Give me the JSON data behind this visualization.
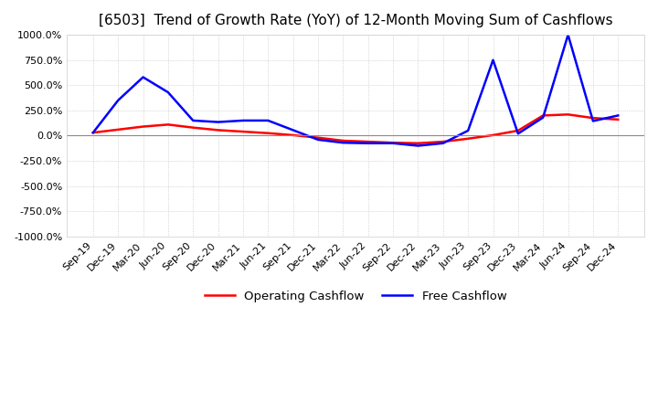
{
  "title": "[6503]  Trend of Growth Rate (YoY) of 12-Month Moving Sum of Cashflows",
  "title_fontsize": 11,
  "background_color": "#ffffff",
  "grid_color": "#bbbbbb",
  "ylim": [
    -1000,
    1000
  ],
  "yticks": [
    -1000,
    -750,
    -500,
    -250,
    0,
    250,
    500,
    750,
    1000
  ],
  "legend_labels": [
    "Operating Cashflow",
    "Free Cashflow"
  ],
  "legend_colors": [
    "#ff0000",
    "#0000ff"
  ],
  "x_labels": [
    "Sep-19",
    "Dec-19",
    "Mar-20",
    "Jun-20",
    "Sep-20",
    "Dec-20",
    "Mar-21",
    "Jun-21",
    "Sep-21",
    "Dec-21",
    "Mar-22",
    "Jun-22",
    "Sep-22",
    "Dec-22",
    "Mar-23",
    "Jun-23",
    "Sep-23",
    "Dec-23",
    "Mar-24",
    "Jun-24",
    "Sep-24",
    "Dec-24"
  ],
  "operating_cashflow": [
    30,
    60,
    90,
    110,
    80,
    55,
    40,
    25,
    5,
    -20,
    -50,
    -60,
    -70,
    -75,
    -60,
    -30,
    5,
    50,
    200,
    210,
    175,
    160
  ],
  "free_cashflow": [
    30,
    350,
    580,
    430,
    150,
    135,
    150,
    150,
    55,
    -40,
    -70,
    -75,
    -75,
    -100,
    -75,
    50,
    750,
    20,
    180,
    1000,
    145,
    200
  ]
}
